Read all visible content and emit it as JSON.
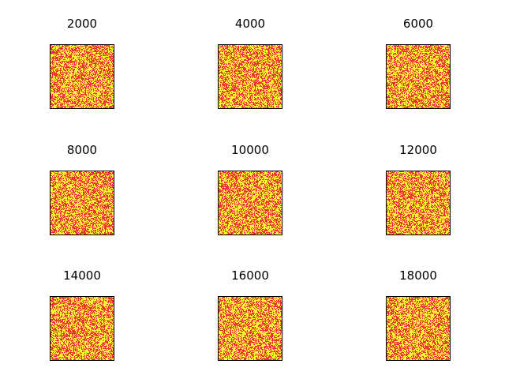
{
  "chart_data": {
    "type": "heatmap",
    "layout": "3x3 small multiples",
    "panel_titles": [
      "2000",
      "4000",
      "6000",
      "8000",
      "10000",
      "12000",
      "14000",
      "16000",
      "18000"
    ],
    "cell_states": [
      "red",
      "yellow"
    ],
    "colors": {
      "red": "#ee3333",
      "yellow": "#ffff33",
      "frame": "#000000"
    },
    "grid_cells_per_side": 80,
    "axes_ticks": false
  }
}
